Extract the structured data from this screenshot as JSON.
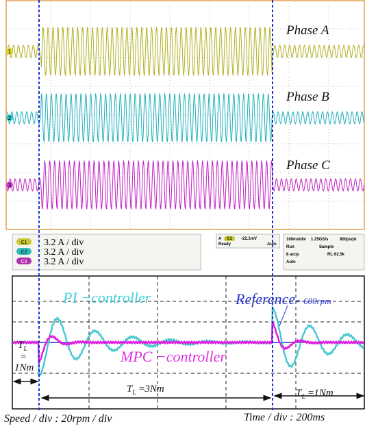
{
  "channels": [
    {
      "marker": "1",
      "label": "Phase A",
      "badge": "C1",
      "scale": "3.2 A / div"
    },
    {
      "marker": "2",
      "label": "Phase B",
      "badge": "C2",
      "scale": "3.2 A / div"
    },
    {
      "marker": "3",
      "label": "Phase C",
      "badge": "C3",
      "scale": "3.2 A / div"
    }
  ],
  "status": {
    "trigger_source": "A",
    "trigger_channel": "C1",
    "trigger_level": "-22.1mV",
    "state": "Ready",
    "mode": "Auto",
    "timebase": "100ms/div",
    "sample_rate": "1.25GS/s",
    "resolution": "800ps/pt",
    "run": "Run",
    "acq_mode": "Sample",
    "acquisitions": "8 acqs",
    "record_length": "RL:62.5k",
    "trigger_mode": "Auto"
  },
  "speed_plot": {
    "pi_label": "PI −controller",
    "mpc_label": "MPC −controller",
    "reference_label": "Reference",
    "reference_value": "= 600rpm",
    "loads": [
      {
        "symbol": "T",
        "subscript": "L",
        "equals": "=",
        "amount": "1Nm"
      },
      {
        "symbol": "T",
        "subscript": "L",
        "equals": "=",
        "amount": "3Nm"
      },
      {
        "symbol": "T",
        "subscript": "L",
        "equals": "=",
        "amount": "1Nm"
      }
    ],
    "speed_scale": "Speed / div : 20rpm / div",
    "time_scale": "Time / div : 200ms"
  }
}
